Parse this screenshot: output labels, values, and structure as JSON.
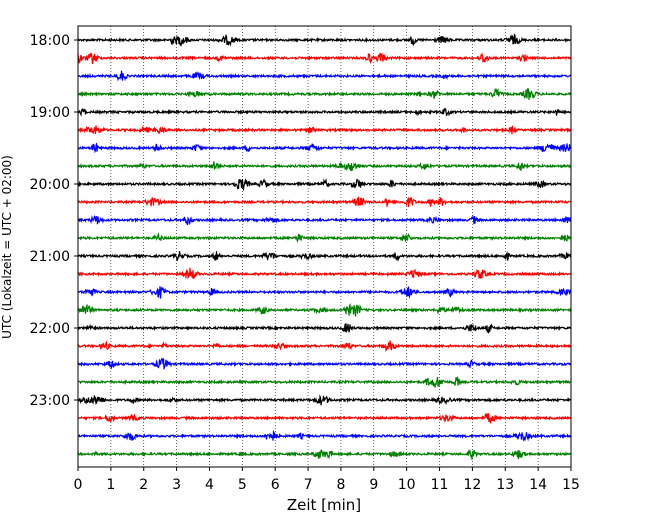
{
  "chart_data": {
    "type": "line",
    "title": "",
    "xlabel": "Zeit  [min]",
    "ylabel": "UTC (Lokalzeit = UTC + 02:00)",
    "xlim": [
      0,
      15
    ],
    "x_ticks": [
      "0",
      "1",
      "2",
      "3",
      "4",
      "5",
      "6",
      "7",
      "8",
      "9",
      "10",
      "11",
      "12",
      "13",
      "14",
      "15"
    ],
    "y_tick_labels": [
      "18:00",
      "19:00",
      "20:00",
      "21:00",
      "22:00",
      "23:00"
    ],
    "trace_start_times": [
      "18:00",
      "18:15",
      "18:30",
      "18:45",
      "19:00",
      "19:15",
      "19:30",
      "19:45",
      "20:00",
      "20:15",
      "20:30",
      "20:45",
      "21:00",
      "21:15",
      "21:30",
      "21:45",
      "22:00",
      "22:15",
      "22:30",
      "22:45",
      "23:00",
      "23:15",
      "23:30",
      "23:45"
    ],
    "trace_colors": [
      "#000000",
      "#ff0000",
      "#0000ff",
      "#008000"
    ],
    "grid": "vertical dotted",
    "legend": "none"
  }
}
